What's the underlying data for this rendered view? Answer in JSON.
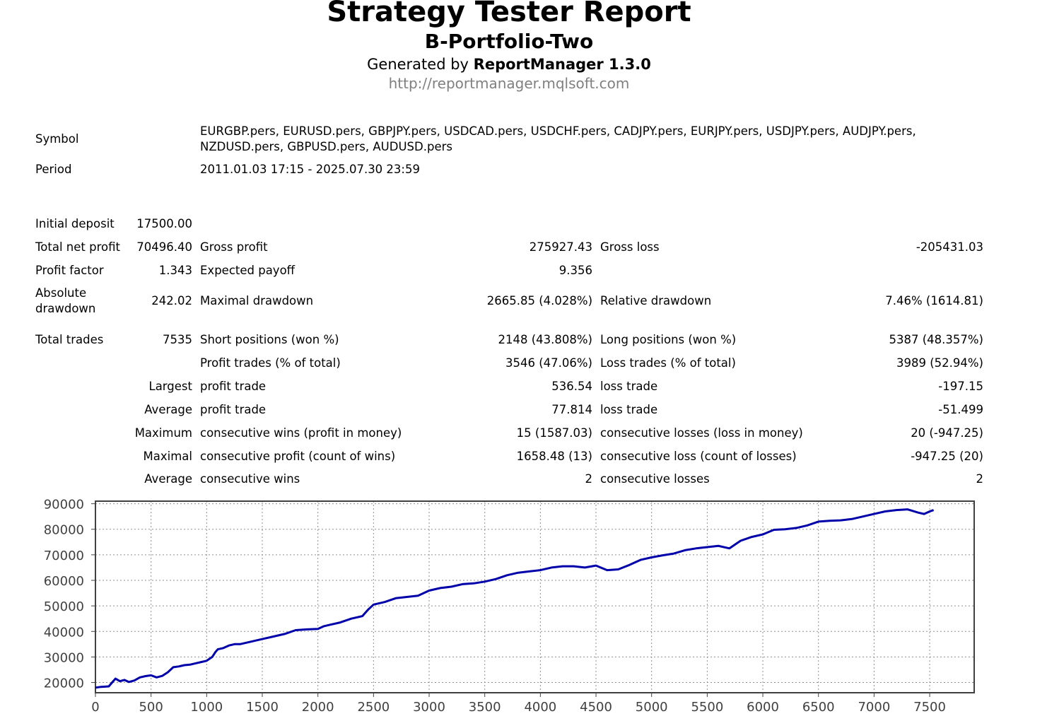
{
  "header": {
    "title": "Strategy Tester Report",
    "subtitle": "B-Portfolio-Two",
    "generated_prefix": "Generated by ",
    "generated_tool": "ReportManager 1.3.0",
    "url": "http://reportmanager.mqlsoft.com"
  },
  "info": {
    "symbol_label": "Symbol",
    "symbol_line1": "EURGBP.pers, EURUSD.pers, GBPJPY.pers, USDCAD.pers, USDCHF.pers, CADJPY.pers, EURJPY.pers, USDJPY.pers, AUDJPY.pers,",
    "symbol_line2": "NZDUSD.pers, GBPUSD.pers, AUDUSD.pers",
    "period_label": "Period",
    "period_value": "2011.01.03 17:15 - 2025.07.30 23:59"
  },
  "stats": {
    "initial_deposit_label": "Initial deposit",
    "initial_deposit": "17500.00",
    "total_net_profit_label": "Total net profit",
    "total_net_profit": "70496.40",
    "gross_profit_label": "Gross profit",
    "gross_profit": "275927.43",
    "gross_loss_label": "Gross loss",
    "gross_loss": "-205431.03",
    "profit_factor_label": "Profit factor",
    "profit_factor": "1.343",
    "expected_payoff_label": "Expected payoff",
    "expected_payoff": "9.356",
    "absolute_drawdown_label1": "Absolute",
    "absolute_drawdown_label2": "drawdown",
    "absolute_drawdown": "242.02",
    "maximal_drawdown_label": "Maximal drawdown",
    "maximal_drawdown": "2665.85 (4.028%)",
    "relative_drawdown_label": "Relative drawdown",
    "relative_drawdown": "7.46% (1614.81)",
    "total_trades_label": "Total trades",
    "total_trades": "7535",
    "short_positions_label": "Short positions (won %)",
    "short_positions": "2148 (43.808%)",
    "long_positions_label": "Long positions (won %)",
    "long_positions": "5387 (48.357%)",
    "profit_trades_label": "Profit trades (% of total)",
    "profit_trades": "3546 (47.06%)",
    "loss_trades_label": "Loss trades (% of total)",
    "loss_trades": "3989 (52.94%)",
    "largest_label": "Largest",
    "largest_profit_label": "profit trade",
    "largest_profit": "536.54",
    "largest_loss_label": "loss trade",
    "largest_loss": "-197.15",
    "average_label": "Average",
    "average_profit_label": "profit trade",
    "average_profit": "77.814",
    "average_loss_label": "loss trade",
    "average_loss": "-51.499",
    "maximum_label": "Maximum",
    "max_consec_wins_label": "consecutive wins (profit in money)",
    "max_consec_wins": "15 (1587.03)",
    "max_consec_losses_label": "consecutive losses (loss in money)",
    "max_consec_losses": "20 (-947.25)",
    "maximal_label": "Maximal",
    "maximal_consec_profit_label": "consecutive profit (count of wins)",
    "maximal_consec_profit": "1658.48 (13)",
    "maximal_consec_loss_label": "consecutive loss (count of losses)",
    "maximal_consec_loss": "-947.25 (20)",
    "average2_label": "Average",
    "avg_consec_wins_label": "consecutive wins",
    "avg_consec_wins": "2",
    "avg_consec_losses_label": "consecutive losses",
    "avg_consec_losses": "2"
  },
  "chart_data": {
    "type": "line",
    "title": "",
    "xlabel": "",
    "ylabel": "",
    "xlim": [
      0,
      7900
    ],
    "ylim": [
      16000,
      91000
    ],
    "x_ticks": [
      0,
      500,
      1000,
      1500,
      2000,
      2500,
      3000,
      3500,
      4000,
      4500,
      5000,
      5500,
      6000,
      6500,
      7000,
      7500
    ],
    "y_ticks": [
      20000,
      30000,
      40000,
      50000,
      60000,
      70000,
      80000,
      90000
    ],
    "grid": true,
    "line_color": "#0000aa",
    "series": [
      {
        "x": [
          0,
          50,
          120,
          150,
          180,
          220,
          260,
          300,
          350,
          400,
          450,
          500,
          550,
          600,
          650,
          700,
          750,
          800,
          850,
          900,
          950,
          1000,
          1050,
          1080,
          1100,
          1150,
          1200,
          1250,
          1300,
          1400,
          1500,
          1600,
          1700,
          1800,
          1900,
          2000,
          2050,
          2100,
          2200,
          2300,
          2400,
          2450,
          2500,
          2600,
          2700,
          2800,
          2900,
          3000,
          3100,
          3200,
          3300,
          3400,
          3500,
          3600,
          3700,
          3800,
          3900,
          4000,
          4100,
          4200,
          4300,
          4400,
          4500,
          4600,
          4700,
          4800,
          4900,
          5000,
          5100,
          5200,
          5300,
          5400,
          5500,
          5600,
          5700,
          5800,
          5900,
          6000,
          6100,
          6200,
          6300,
          6400,
          6500,
          6600,
          6700,
          6800,
          6900,
          7000,
          7100,
          7200,
          7300,
          7400,
          7450,
          7500,
          7535
        ],
        "y": [
          18000,
          18300,
          18500,
          20000,
          21500,
          20500,
          21000,
          20200,
          20800,
          22000,
          22500,
          22800,
          22000,
          22600,
          24000,
          26000,
          26300,
          26800,
          27000,
          27500,
          28000,
          28500,
          30000,
          32000,
          33000,
          33500,
          34500,
          35000,
          35000,
          36000,
          37000,
          38000,
          39000,
          40500,
          40800,
          41000,
          42000,
          42500,
          43500,
          45000,
          46000,
          48500,
          50500,
          51500,
          53000,
          53500,
          54000,
          56000,
          57000,
          57500,
          58500,
          58800,
          59500,
          60500,
          62000,
          63000,
          63500,
          64000,
          65000,
          65500,
          65500,
          65000,
          65800,
          64000,
          64300,
          66000,
          68000,
          69000,
          69800,
          70500,
          71800,
          72500,
          73000,
          73500,
          72500,
          75500,
          77000,
          78000,
          79800,
          80000,
          80500,
          81500,
          83000,
          83300,
          83500,
          84000,
          85000,
          86000,
          87000,
          87500,
          87800,
          86500,
          86000,
          87000,
          87500
        ]
      }
    ]
  }
}
